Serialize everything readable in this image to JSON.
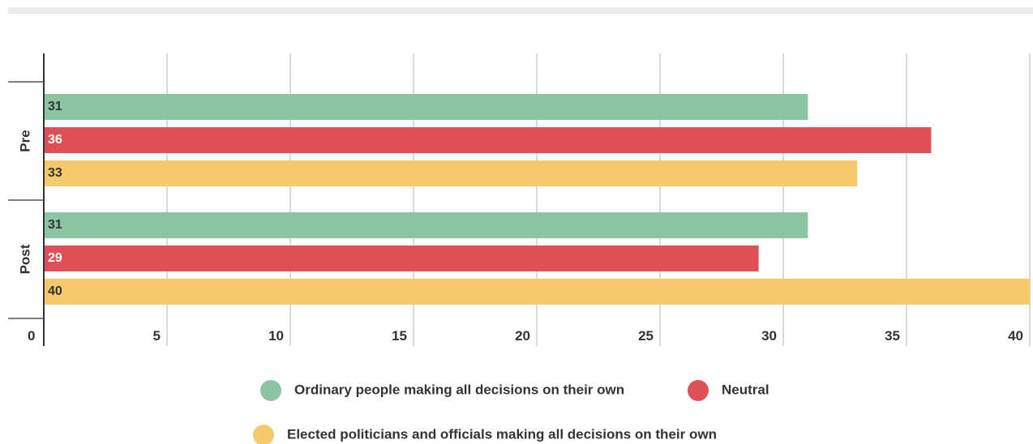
{
  "chart_data": {
    "type": "bar",
    "orientation": "horizontal",
    "groups": [
      "Pre",
      "Post"
    ],
    "series": [
      {
        "name": "Ordinary people making all decisions on their own",
        "color": "#8cc5a4",
        "label_color": "#333333",
        "values": [
          31,
          31
        ]
      },
      {
        "name": "Neutral",
        "color": "#de5055",
        "label_color": "#ffffff",
        "values": [
          36,
          29
        ]
      },
      {
        "name": "Elected politicians and officials making all decisions on their own",
        "color": "#f6c96c",
        "label_color": "#333333",
        "values": [
          33,
          40
        ]
      }
    ],
    "xlim": [
      0,
      40
    ],
    "xticks": [
      0,
      5,
      10,
      15,
      20,
      25,
      30,
      35,
      40
    ],
    "grid": true,
    "legend_position": "bottom-center",
    "title": "",
    "xlabel": "",
    "ylabel": ""
  }
}
